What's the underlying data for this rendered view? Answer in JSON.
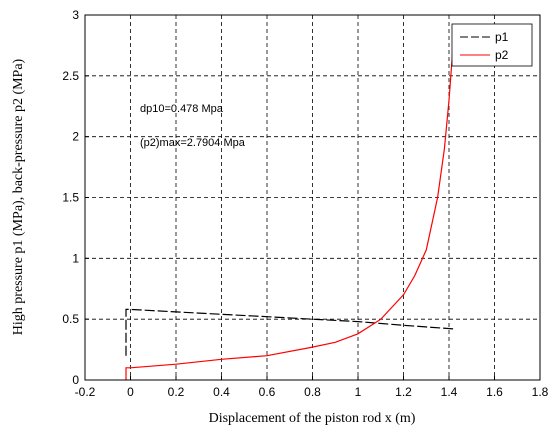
{
  "chart_data": {
    "type": "line",
    "xlabel": "Displacement of the piston rod x (m)",
    "ylabel": "High pressure p1 (MPa), back-pressure p2 (MPa)",
    "xlim": [
      -0.2,
      1.8
    ],
    "ylim": [
      0,
      3
    ],
    "xticks": [
      "-0.2",
      "0",
      "0.2",
      "0.4",
      "0.6",
      "0.8",
      "1",
      "1.2",
      "1.4",
      "1.6",
      "1.8"
    ],
    "yticks": [
      "0",
      "0.5",
      "1",
      "1.5",
      "2",
      "2.5",
      "3"
    ],
    "grid": true,
    "legend_position": "top-right",
    "annotations": [
      "dp10=0.478 Mpa",
      "(p2)max=2.7904 Mpa"
    ],
    "series": [
      {
        "name": "p1",
        "color": "#000000",
        "x": [
          -0.02,
          -0.02,
          0.0,
          0.2,
          0.4,
          0.6,
          0.8,
          1.0,
          1.2,
          1.42
        ],
        "y": [
          0.2,
          0.58,
          0.58,
          0.56,
          0.54,
          0.52,
          0.5,
          0.48,
          0.45,
          0.42
        ]
      },
      {
        "name": "p2",
        "color": "#ff0000",
        "x": [
          -0.02,
          -0.02,
          0.0,
          0.2,
          0.4,
          0.6,
          0.8,
          0.9,
          1.0,
          1.1,
          1.2,
          1.25,
          1.3,
          1.35,
          1.38,
          1.4,
          1.42
        ],
        "y": [
          0.0,
          0.1,
          0.1,
          0.13,
          0.17,
          0.2,
          0.27,
          0.31,
          0.38,
          0.5,
          0.7,
          0.86,
          1.07,
          1.5,
          1.9,
          2.3,
          2.79
        ]
      }
    ]
  }
}
